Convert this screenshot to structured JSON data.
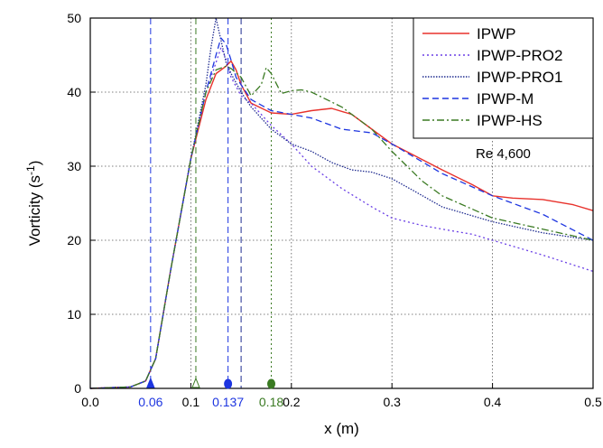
{
  "chart_data": {
    "type": "line",
    "xlabel": "x (m)",
    "ylabel": "Vorticity (s",
    "ylabel_superscript": "-1",
    "ylabel_suffix": ")",
    "xlim": [
      0.0,
      0.5
    ],
    "ylim": [
      0,
      50
    ],
    "xticks": [
      0.0,
      0.1,
      0.2,
      0.3,
      0.4,
      0.5
    ],
    "xtick_labels": [
      "0.0",
      "0.1",
      "0.2",
      "0.3",
      "0.4",
      "0.5"
    ],
    "yticks": [
      0,
      10,
      20,
      30,
      40,
      50
    ],
    "ytick_labels": [
      "0",
      "10",
      "20",
      "30",
      "40",
      "50"
    ],
    "grid": "dotted",
    "legend_position": "top-right",
    "annotation": "Re 4,600",
    "series": [
      {
        "name": "IPWP",
        "color": "#e8322c",
        "dash": "solid",
        "points": [
          [
            0,
            0
          ],
          [
            0.04,
            0.2
          ],
          [
            0.055,
            1
          ],
          [
            0.065,
            4
          ],
          [
            0.08,
            16
          ],
          [
            0.1,
            31
          ],
          [
            0.115,
            39
          ],
          [
            0.125,
            42.5
          ],
          [
            0.135,
            43.5
          ],
          [
            0.14,
            44.2
          ],
          [
            0.145,
            43
          ],
          [
            0.15,
            41
          ],
          [
            0.16,
            38.5
          ],
          [
            0.18,
            37.2
          ],
          [
            0.2,
            37
          ],
          [
            0.22,
            37.5
          ],
          [
            0.24,
            37.8
          ],
          [
            0.26,
            37
          ],
          [
            0.28,
            35
          ],
          [
            0.3,
            33
          ],
          [
            0.35,
            29.5
          ],
          [
            0.38,
            27.5
          ],
          [
            0.4,
            26
          ],
          [
            0.42,
            25.7
          ],
          [
            0.45,
            25.5
          ],
          [
            0.48,
            24.8
          ],
          [
            0.5,
            24
          ]
        ]
      },
      {
        "name": "IPWP-PRO2",
        "color": "#6a3fe6",
        "dash": "dotted",
        "points": [
          [
            0,
            0
          ],
          [
            0.04,
            0.2
          ],
          [
            0.055,
            1
          ],
          [
            0.065,
            4
          ],
          [
            0.08,
            16
          ],
          [
            0.1,
            31
          ],
          [
            0.115,
            40
          ],
          [
            0.125,
            44
          ],
          [
            0.13,
            46
          ],
          [
            0.135,
            44.5
          ],
          [
            0.14,
            42
          ],
          [
            0.15,
            39.5
          ],
          [
            0.16,
            38.5
          ],
          [
            0.18,
            35.5
          ],
          [
            0.2,
            33
          ],
          [
            0.22,
            30
          ],
          [
            0.25,
            27
          ],
          [
            0.28,
            24.5
          ],
          [
            0.3,
            23
          ],
          [
            0.33,
            22
          ],
          [
            0.35,
            21.5
          ],
          [
            0.38,
            20.8
          ],
          [
            0.4,
            20
          ],
          [
            0.45,
            18
          ],
          [
            0.5,
            15.8
          ]
        ]
      },
      {
        "name": "IPWP-PRO1",
        "color": "#1f2b8f",
        "dash": "densedot",
        "points": [
          [
            0,
            0
          ],
          [
            0.04,
            0.2
          ],
          [
            0.055,
            1
          ],
          [
            0.065,
            4
          ],
          [
            0.08,
            16
          ],
          [
            0.1,
            31
          ],
          [
            0.115,
            41
          ],
          [
            0.12,
            46
          ],
          [
            0.125,
            50
          ],
          [
            0.13,
            47
          ],
          [
            0.135,
            44
          ],
          [
            0.14,
            42.5
          ],
          [
            0.15,
            40
          ],
          [
            0.16,
            38
          ],
          [
            0.18,
            35
          ],
          [
            0.2,
            33
          ],
          [
            0.22,
            32
          ],
          [
            0.24,
            30.5
          ],
          [
            0.26,
            29.5
          ],
          [
            0.28,
            29.2
          ],
          [
            0.3,
            28.3
          ],
          [
            0.32,
            26.8
          ],
          [
            0.35,
            24.5
          ],
          [
            0.4,
            22.5
          ],
          [
            0.45,
            21
          ],
          [
            0.5,
            20
          ]
        ]
      },
      {
        "name": "IPWP-M",
        "color": "#1d35e0",
        "dash": "dashed",
        "points": [
          [
            0,
            0
          ],
          [
            0.04,
            0.2
          ],
          [
            0.055,
            1
          ],
          [
            0.065,
            4
          ],
          [
            0.08,
            16
          ],
          [
            0.1,
            31
          ],
          [
            0.115,
            40
          ],
          [
            0.125,
            45
          ],
          [
            0.13,
            47.3
          ],
          [
            0.135,
            46.5
          ],
          [
            0.14,
            44.3
          ],
          [
            0.145,
            42
          ],
          [
            0.16,
            39
          ],
          [
            0.18,
            37.5
          ],
          [
            0.2,
            37
          ],
          [
            0.22,
            36.5
          ],
          [
            0.25,
            35
          ],
          [
            0.28,
            34.5
          ],
          [
            0.3,
            33
          ],
          [
            0.35,
            29
          ],
          [
            0.4,
            26
          ],
          [
            0.45,
            23.5
          ],
          [
            0.5,
            20
          ]
        ]
      },
      {
        "name": "IPWP-HS",
        "color": "#3a7a22",
        "dash": "dashdot",
        "points": [
          [
            0,
            0
          ],
          [
            0.04,
            0.2
          ],
          [
            0.055,
            1
          ],
          [
            0.065,
            4
          ],
          [
            0.08,
            16
          ],
          [
            0.1,
            31
          ],
          [
            0.115,
            40
          ],
          [
            0.125,
            43
          ],
          [
            0.135,
            43.5
          ],
          [
            0.14,
            43.2
          ],
          [
            0.15,
            42
          ],
          [
            0.16,
            39.5
          ],
          [
            0.17,
            41
          ],
          [
            0.175,
            43.3
          ],
          [
            0.18,
            42.5
          ],
          [
            0.19,
            39.8
          ],
          [
            0.2,
            40.2
          ],
          [
            0.21,
            40.3
          ],
          [
            0.22,
            40
          ],
          [
            0.25,
            38
          ],
          [
            0.28,
            35
          ],
          [
            0.3,
            32
          ],
          [
            0.33,
            28
          ],
          [
            0.35,
            26
          ],
          [
            0.4,
            23
          ],
          [
            0.45,
            21.5
          ],
          [
            0.5,
            20
          ]
        ]
      }
    ],
    "vlines": [
      {
        "x": 0.06,
        "color": "#1d35e0",
        "dash": "dashed"
      },
      {
        "x": 0.105,
        "color": "#3a7a22",
        "dash": "dashed"
      },
      {
        "x": 0.137,
        "color": "#1d35e0",
        "dash": "dashed"
      },
      {
        "x": 0.15,
        "color": "#1f2b8f",
        "dash": "dashed"
      },
      {
        "x": 0.18,
        "color": "#3a7a22",
        "dash": "dotted"
      }
    ],
    "markers": [
      {
        "x": 0.06,
        "shape": "triangle",
        "color": "#1d35e0",
        "filled": true,
        "label": "0.06",
        "label_color": "#1d35e0"
      },
      {
        "x": 0.105,
        "shape": "triangle",
        "color": "#3a7a22",
        "filled": false,
        "label": "",
        "label_color": "#3a7a22"
      },
      {
        "x": 0.137,
        "shape": "circle",
        "color": "#1d35e0",
        "filled": true,
        "label": "0.137",
        "label_color": "#1d35e0"
      },
      {
        "x": 0.18,
        "shape": "circle",
        "color": "#3a7a22",
        "filled": true,
        "label": "0.18",
        "label_color": "#3a7a22"
      }
    ]
  }
}
